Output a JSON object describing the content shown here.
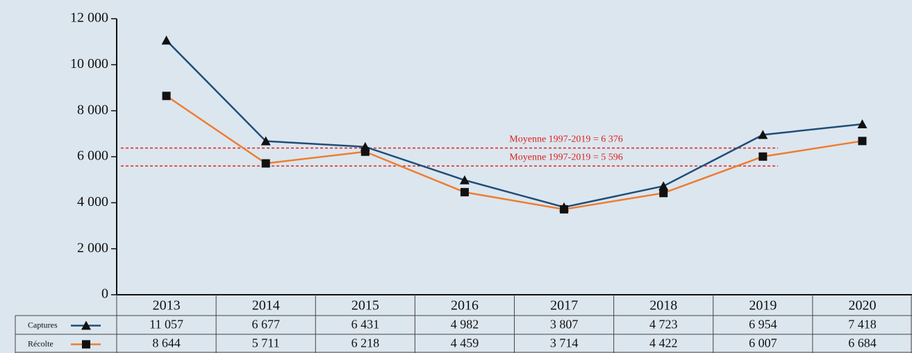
{
  "chart_data": {
    "type": "line",
    "categories": [
      "2013",
      "2014",
      "2015",
      "2016",
      "2017",
      "2018",
      "2019",
      "2020"
    ],
    "series": [
      {
        "name": "Captures",
        "color": "#1f4e79",
        "marker": "triangle",
        "marker_color": "#111111",
        "values": [
          11057,
          6677,
          6431,
          4982,
          3807,
          4723,
          6954,
          7418
        ],
        "value_labels": [
          "11 057",
          "6 677",
          "6 431",
          "4 982",
          "3 807",
          "4 723",
          "6 954",
          "7 418"
        ]
      },
      {
        "name": "Récolte",
        "color": "#ed7d31",
        "marker": "square",
        "marker_color": "#111111",
        "values": [
          8644,
          5711,
          6218,
          4459,
          3714,
          4422,
          6007,
          6684
        ],
        "value_labels": [
          "8 644",
          "5 711",
          "6 218",
          "4 459",
          "3 714",
          "4 422",
          "6 007",
          "6 684"
        ]
      }
    ],
    "ylim": [
      0,
      12000
    ],
    "yticks": [
      0,
      {
        "value": 2000,
        "label": "2 000"
      },
      {
        "value": 4000,
        "label": "4 000"
      },
      {
        "value": 6000,
        "label": "6 000"
      },
      {
        "value": 8000,
        "label": "8 000"
      },
      {
        "value": 10000,
        "label": "10 000"
      },
      {
        "value": 12000,
        "label": "12 000"
      }
    ],
    "reference_lines": [
      {
        "value": 6376,
        "label": "Moyenne 1997-2019 = 6 376",
        "color": "#e02020"
      },
      {
        "value": 5596,
        "label": "Moyenne 1997-2019 = 5 596",
        "color": "#e02020"
      }
    ]
  }
}
